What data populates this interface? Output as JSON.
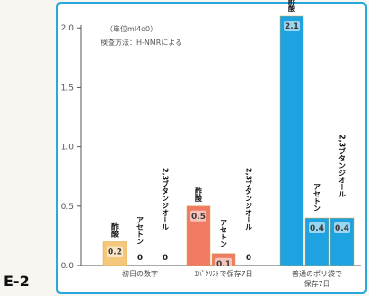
{
  "figure_label": "E-2",
  "notes": [
    "（単位ml4o0）",
    "検査方法：H-NMRによる"
  ],
  "colors": {
    "frame": "#2aa8dc",
    "axis": "#555555"
  },
  "chart_data": {
    "type": "bar",
    "title": "",
    "xlabel": "",
    "ylabel": "",
    "ylim": [
      0,
      2.1
    ],
    "yticks": [
      "0.0",
      "0.5",
      "1.0",
      "1.5",
      "2.0"
    ],
    "grid": false,
    "legend": "none",
    "groups": [
      {
        "label_lines": [
          "初日の数字"
        ],
        "color": "#f4c77a",
        "bars": [
          {
            "name": "酢酸",
            "value": 0.2,
            "value_label": "0.2"
          },
          {
            "name": "アセトン",
            "value": 0,
            "value_label": "0"
          },
          {
            "name": "2,3ブタンジオール",
            "value": 0,
            "value_label": "0"
          }
        ]
      },
      {
        "label_lines": [
          "ｴﾊﾞｸﾘｽﾄで保存7日"
        ],
        "color": "#ef7b62",
        "bars": [
          {
            "name": "酢酸",
            "value": 0.5,
            "value_label": "0.5"
          },
          {
            "name": "アセトン",
            "value": 0.1,
            "value_label": "0.1"
          },
          {
            "name": "2,3ブタンジオール",
            "value": 0,
            "value_label": "0"
          }
        ]
      },
      {
        "label_lines": [
          "普通のポリ袋で",
          "保存7日"
        ],
        "color": "#1fa3e0",
        "bars": [
          {
            "name": "酢酸",
            "value": 2.1,
            "value_label": "2.1"
          },
          {
            "name": "アセトン",
            "value": 0.4,
            "value_label": "0.4"
          },
          {
            "name": "2,3ブタンジオール",
            "value": 0.4,
            "value_label": "0.4"
          }
        ]
      }
    ]
  }
}
